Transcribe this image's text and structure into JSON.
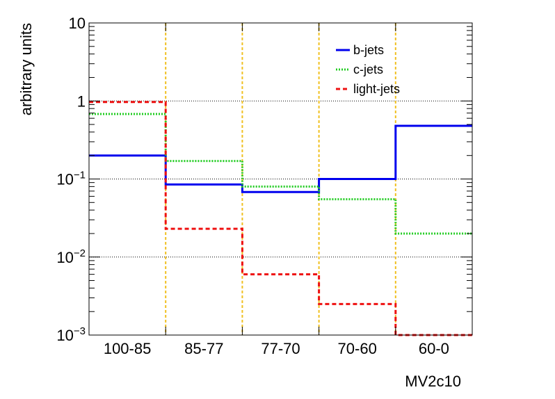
{
  "chart_data": {
    "type": "line",
    "xlabel": "MV2c10",
    "ylabel": "arbitrary units",
    "y_scale": "log",
    "ylim": [
      0.001,
      10
    ],
    "grid": "horizontal",
    "legend_position": "top-right",
    "categories": [
      "100-85",
      "85-77",
      "77-70",
      "70-60",
      "60-0"
    ],
    "y_ticks": [
      {
        "value": 10,
        "label": "10",
        "exp": ""
      },
      {
        "value": 1,
        "label": "1",
        "exp": ""
      },
      {
        "value": 0.1,
        "label": "10",
        "exp": "−1"
      },
      {
        "value": 0.01,
        "label": "10",
        "exp": "−2"
      },
      {
        "value": 0.001,
        "label": "10",
        "exp": "−3"
      }
    ],
    "series": [
      {
        "name": "b-jets",
        "values": [
          0.2,
          0.085,
          0.068,
          0.1,
          0.48
        ],
        "color": "#0000ee",
        "style": "solid"
      },
      {
        "name": "c-jets",
        "values": [
          0.68,
          0.17,
          0.08,
          0.055,
          0.02
        ],
        "color": "#22cc22",
        "style": "dotted"
      },
      {
        "name": "light-jets",
        "values": [
          0.97,
          0.023,
          0.006,
          0.0025,
          0.001
        ],
        "color": "#ee1111",
        "style": "dashed"
      }
    ],
    "bin_separator_color": "#f0c020"
  }
}
